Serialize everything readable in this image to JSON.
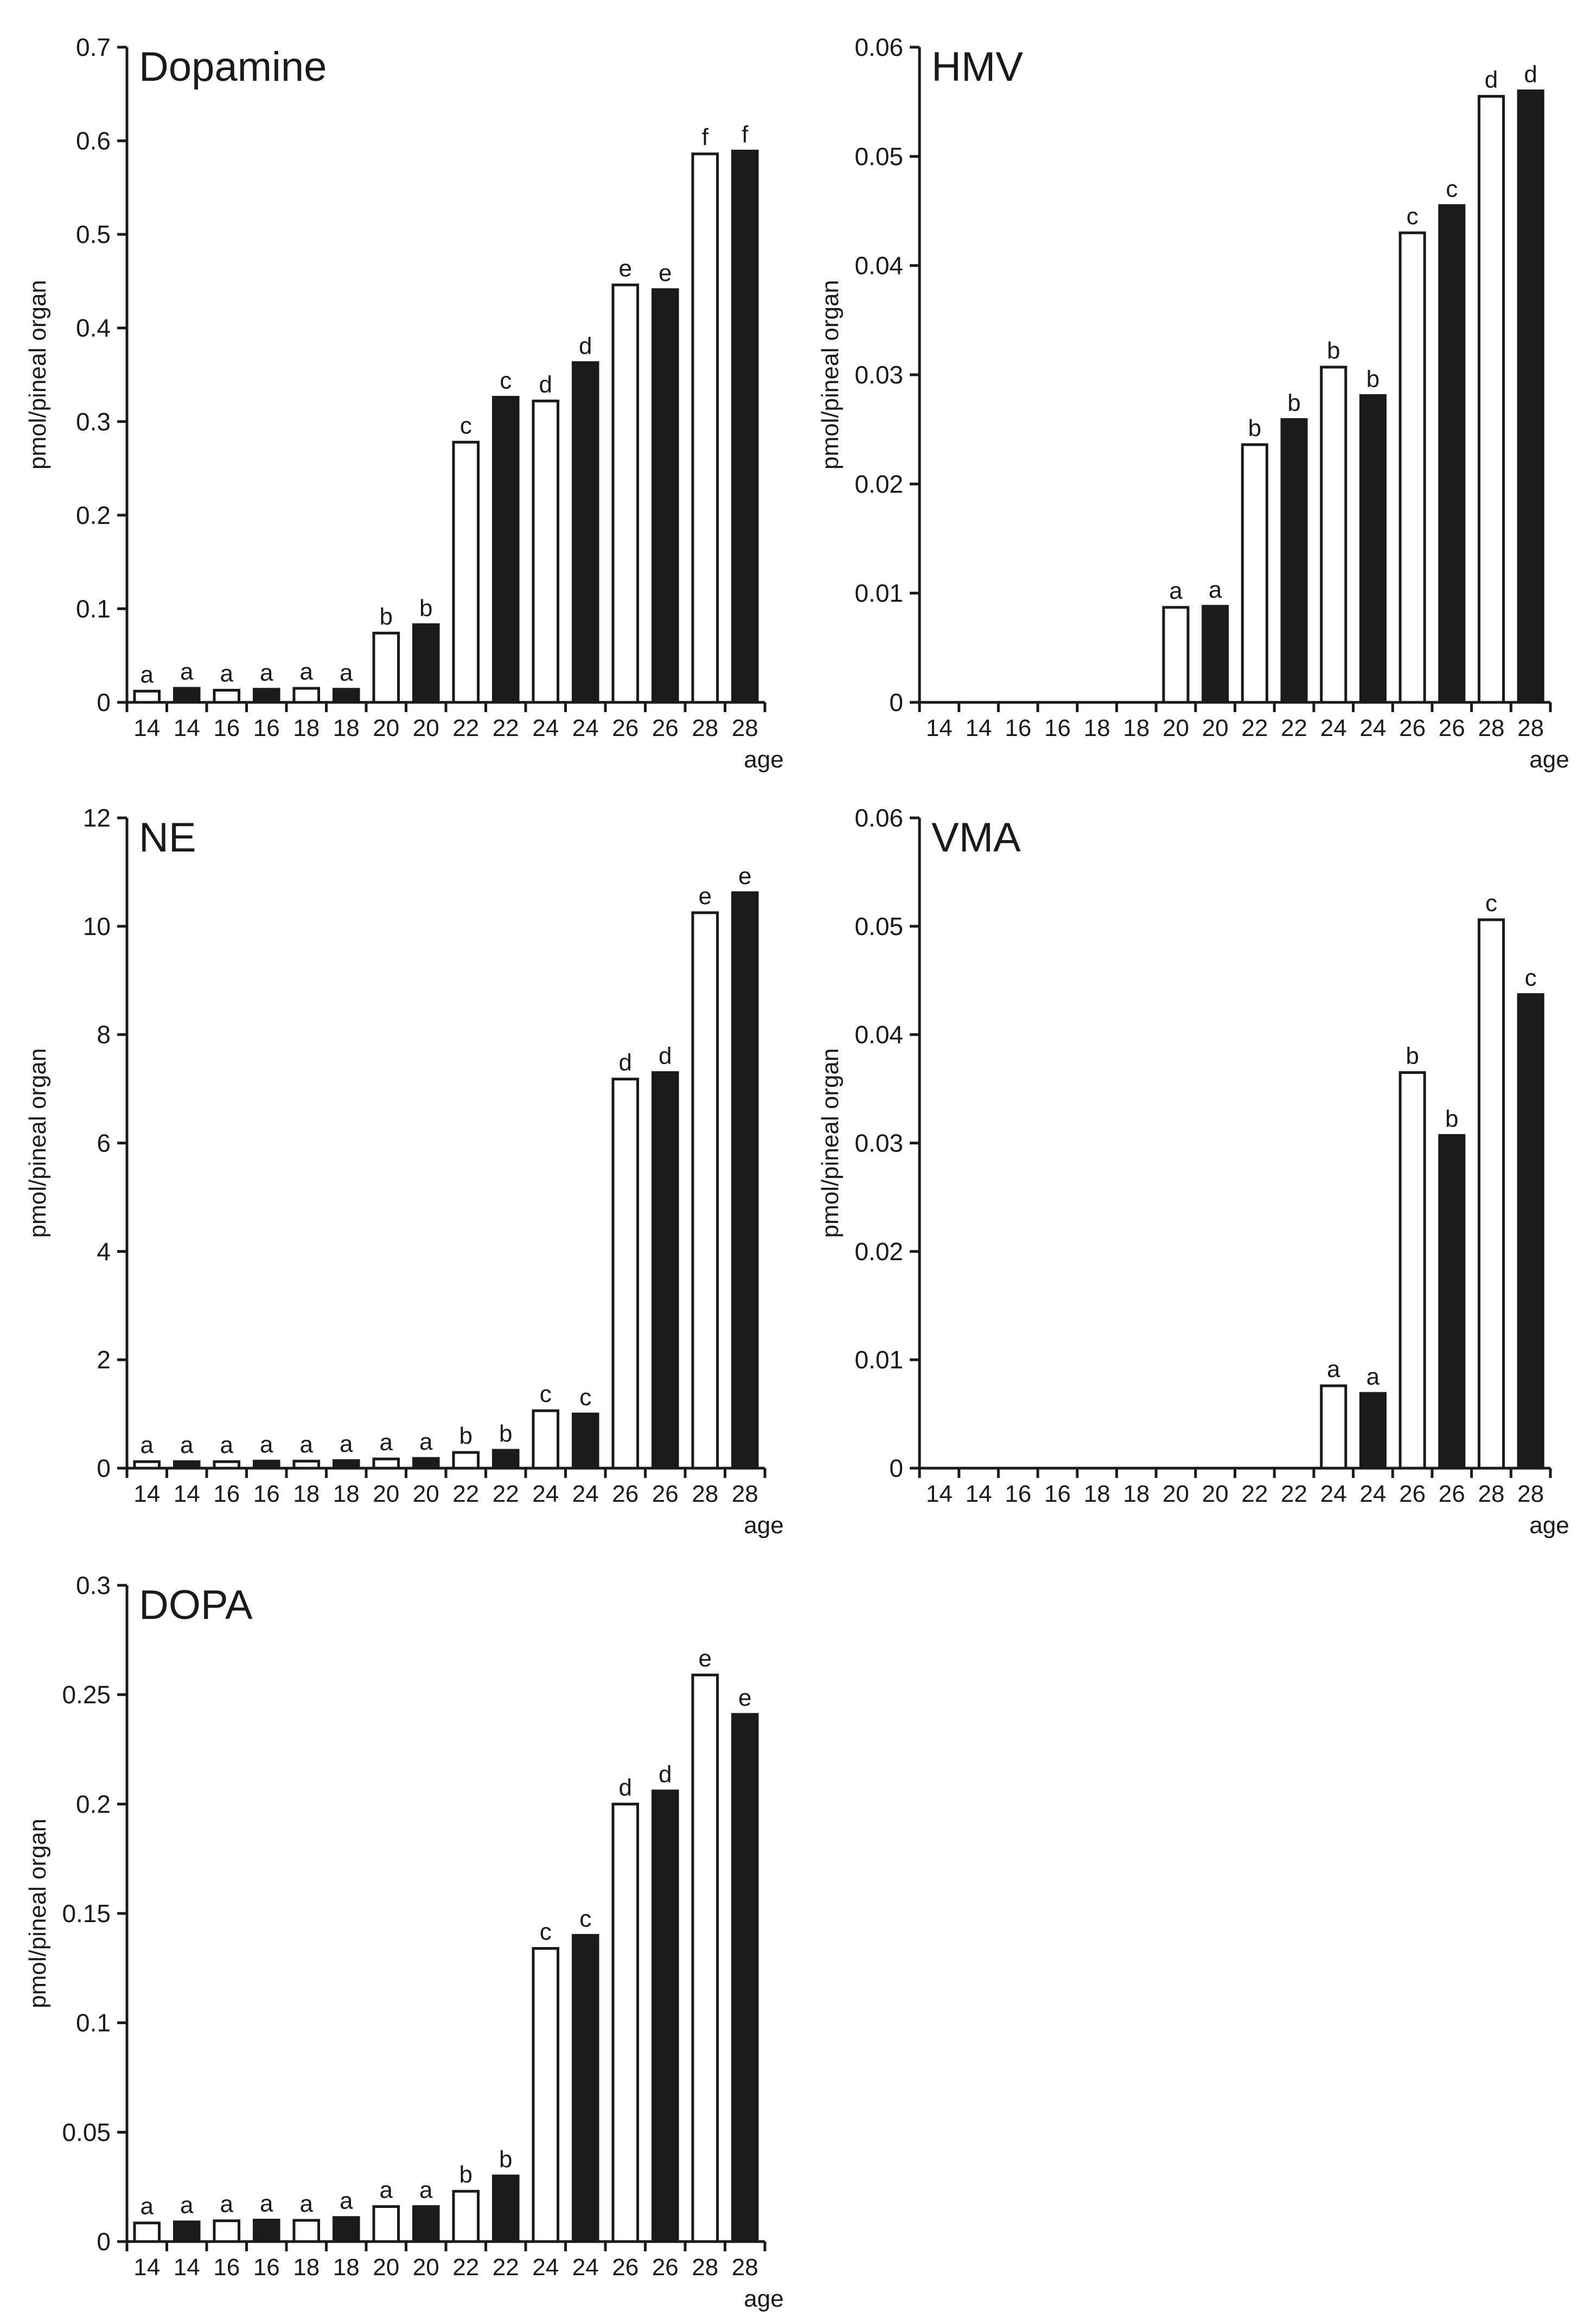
{
  "figure": {
    "colors": {
      "open_bar": "#ffffff",
      "filled_bar": "#1a1a1a",
      "stroke": "#1a1a1a"
    }
  },
  "chart_data": [
    {
      "id": "dopamine",
      "type": "bar",
      "title": "Dopamine",
      "ylabel": "pmol/pineal organ",
      "xlabel": "age",
      "ylim": [
        0,
        0.7
      ],
      "yticks": [
        0,
        0.1,
        0.2,
        0.3,
        0.4,
        0.5,
        0.6,
        0.7
      ],
      "ytick_labels": [
        "0",
        "0.1",
        "0.2",
        "0.3",
        "0.4",
        "0.5",
        "0.6",
        "0.7"
      ],
      "categories": [
        "14",
        "14",
        "16",
        "16",
        "18",
        "18",
        "20",
        "20",
        "22",
        "22",
        "24",
        "24",
        "26",
        "26",
        "28",
        "28"
      ],
      "fills": [
        "open",
        "filled",
        "open",
        "filled",
        "open",
        "filled",
        "open",
        "filled",
        "open",
        "filled",
        "open",
        "filled",
        "open",
        "filled",
        "open",
        "filled"
      ],
      "values": [
        0.012,
        0.015,
        0.013,
        0.014,
        0.015,
        0.014,
        0.074,
        0.083,
        0.278,
        0.326,
        0.322,
        0.363,
        0.446,
        0.441,
        0.586,
        0.589
      ],
      "letters": [
        "a",
        "a",
        "a",
        "a",
        "a",
        "a",
        "b",
        "b",
        "c",
        "c",
        "d",
        "d",
        "e",
        "e",
        "f",
        "f"
      ]
    },
    {
      "id": "hmv",
      "type": "bar",
      "title": "HMV",
      "ylabel": "pmol/pineal organ",
      "xlabel": "age",
      "ylim": [
        0,
        0.06
      ],
      "yticks": [
        0,
        0.01,
        0.02,
        0.03,
        0.04,
        0.05,
        0.06
      ],
      "ytick_labels": [
        "0",
        "0.01",
        "0.02",
        "0.03",
        "0.04",
        "0.05",
        "0.06"
      ],
      "categories": [
        "14",
        "14",
        "16",
        "16",
        "18",
        "18",
        "20",
        "20",
        "22",
        "22",
        "24",
        "24",
        "26",
        "26",
        "28",
        "28"
      ],
      "fills": [
        "open",
        "filled",
        "open",
        "filled",
        "open",
        "filled",
        "open",
        "filled",
        "open",
        "filled",
        "open",
        "filled",
        "open",
        "filled",
        "open",
        "filled"
      ],
      "values": [
        0,
        0,
        0,
        0,
        0,
        0,
        0.0087,
        0.0088,
        0.0236,
        0.0259,
        0.0307,
        0.0281,
        0.043,
        0.0455,
        0.0555,
        0.056
      ],
      "letters": [
        "",
        "",
        "",
        "",
        "",
        "",
        "a",
        "a",
        "b",
        "b",
        "b",
        "b",
        "c",
        "c",
        "d",
        "d"
      ]
    },
    {
      "id": "ne",
      "type": "bar",
      "title": "NE",
      "ylabel": "pmol/pineal organ",
      "xlabel": "age",
      "ylim": [
        0,
        12
      ],
      "yticks": [
        0,
        2,
        4,
        6,
        8,
        10,
        12
      ],
      "ytick_labels": [
        "0",
        "2",
        "4",
        "6",
        "8",
        "10",
        "12"
      ],
      "categories": [
        "14",
        "14",
        "16",
        "16",
        "18",
        "18",
        "20",
        "20",
        "22",
        "22",
        "24",
        "24",
        "26",
        "26",
        "28",
        "28"
      ],
      "fills": [
        "open",
        "filled",
        "open",
        "filled",
        "open",
        "filled",
        "open",
        "filled",
        "open",
        "filled",
        "open",
        "filled",
        "open",
        "filled",
        "open",
        "filled"
      ],
      "values": [
        0.12,
        0.12,
        0.12,
        0.13,
        0.13,
        0.14,
        0.17,
        0.18,
        0.29,
        0.33,
        1.06,
        1.0,
        7.18,
        7.3,
        10.25,
        10.62
      ],
      "letters": [
        "a",
        "a",
        "a",
        "a",
        "a",
        "a",
        "a",
        "a",
        "b",
        "b",
        "c",
        "c",
        "d",
        "d",
        "e",
        "e"
      ]
    },
    {
      "id": "vma",
      "type": "bar",
      "title": "VMA",
      "ylabel": "pmol/pineal organ",
      "xlabel": "age",
      "ylim": [
        0,
        0.06
      ],
      "yticks": [
        0,
        0.01,
        0.02,
        0.03,
        0.04,
        0.05,
        0.06
      ],
      "ytick_labels": [
        "0",
        "0.01",
        "0.02",
        "0.03",
        "0.04",
        "0.05",
        "0.06"
      ],
      "categories": [
        "14",
        "14",
        "16",
        "16",
        "18",
        "18",
        "20",
        "20",
        "22",
        "22",
        "24",
        "24",
        "26",
        "26",
        "28",
        "28"
      ],
      "fills": [
        "open",
        "filled",
        "open",
        "filled",
        "open",
        "filled",
        "open",
        "filled",
        "open",
        "filled",
        "open",
        "filled",
        "open",
        "filled",
        "open",
        "filled"
      ],
      "values": [
        0,
        0,
        0,
        0,
        0,
        0,
        0,
        0,
        0,
        0,
        0.0076,
        0.0069,
        0.0365,
        0.0307,
        0.0506,
        0.0437
      ],
      "letters": [
        "",
        "",
        "",
        "",
        "",
        "",
        "",
        "",
        "",
        "",
        "a",
        "a",
        "b",
        "b",
        "c",
        "c"
      ]
    },
    {
      "id": "dopa",
      "type": "bar",
      "title": "DOPA",
      "ylabel": "pmol/pineal organ",
      "xlabel": "age",
      "ylim": [
        0,
        0.3
      ],
      "yticks": [
        0,
        0.05,
        0.1,
        0.15,
        0.2,
        0.25,
        0.3
      ],
      "ytick_labels": [
        "0",
        "0.05",
        "0.1",
        "0.15",
        "0.2",
        "0.25",
        "0.3"
      ],
      "categories": [
        "14",
        "14",
        "16",
        "16",
        "18",
        "18",
        "20",
        "20",
        "22",
        "22",
        "24",
        "24",
        "26",
        "26",
        "28",
        "28"
      ],
      "fills": [
        "open",
        "filled",
        "open",
        "filled",
        "open",
        "filled",
        "open",
        "filled",
        "open",
        "filled",
        "open",
        "filled",
        "open",
        "filled",
        "open",
        "filled"
      ],
      "values": [
        0.0085,
        0.009,
        0.0095,
        0.0098,
        0.0097,
        0.011,
        0.016,
        0.016,
        0.023,
        0.03,
        0.134,
        0.14,
        0.2,
        0.206,
        0.259,
        0.241
      ],
      "letters": [
        "a",
        "a",
        "a",
        "a",
        "a",
        "a",
        "a",
        "a",
        "b",
        "b",
        "c",
        "c",
        "d",
        "d",
        "e",
        "e"
      ]
    }
  ]
}
